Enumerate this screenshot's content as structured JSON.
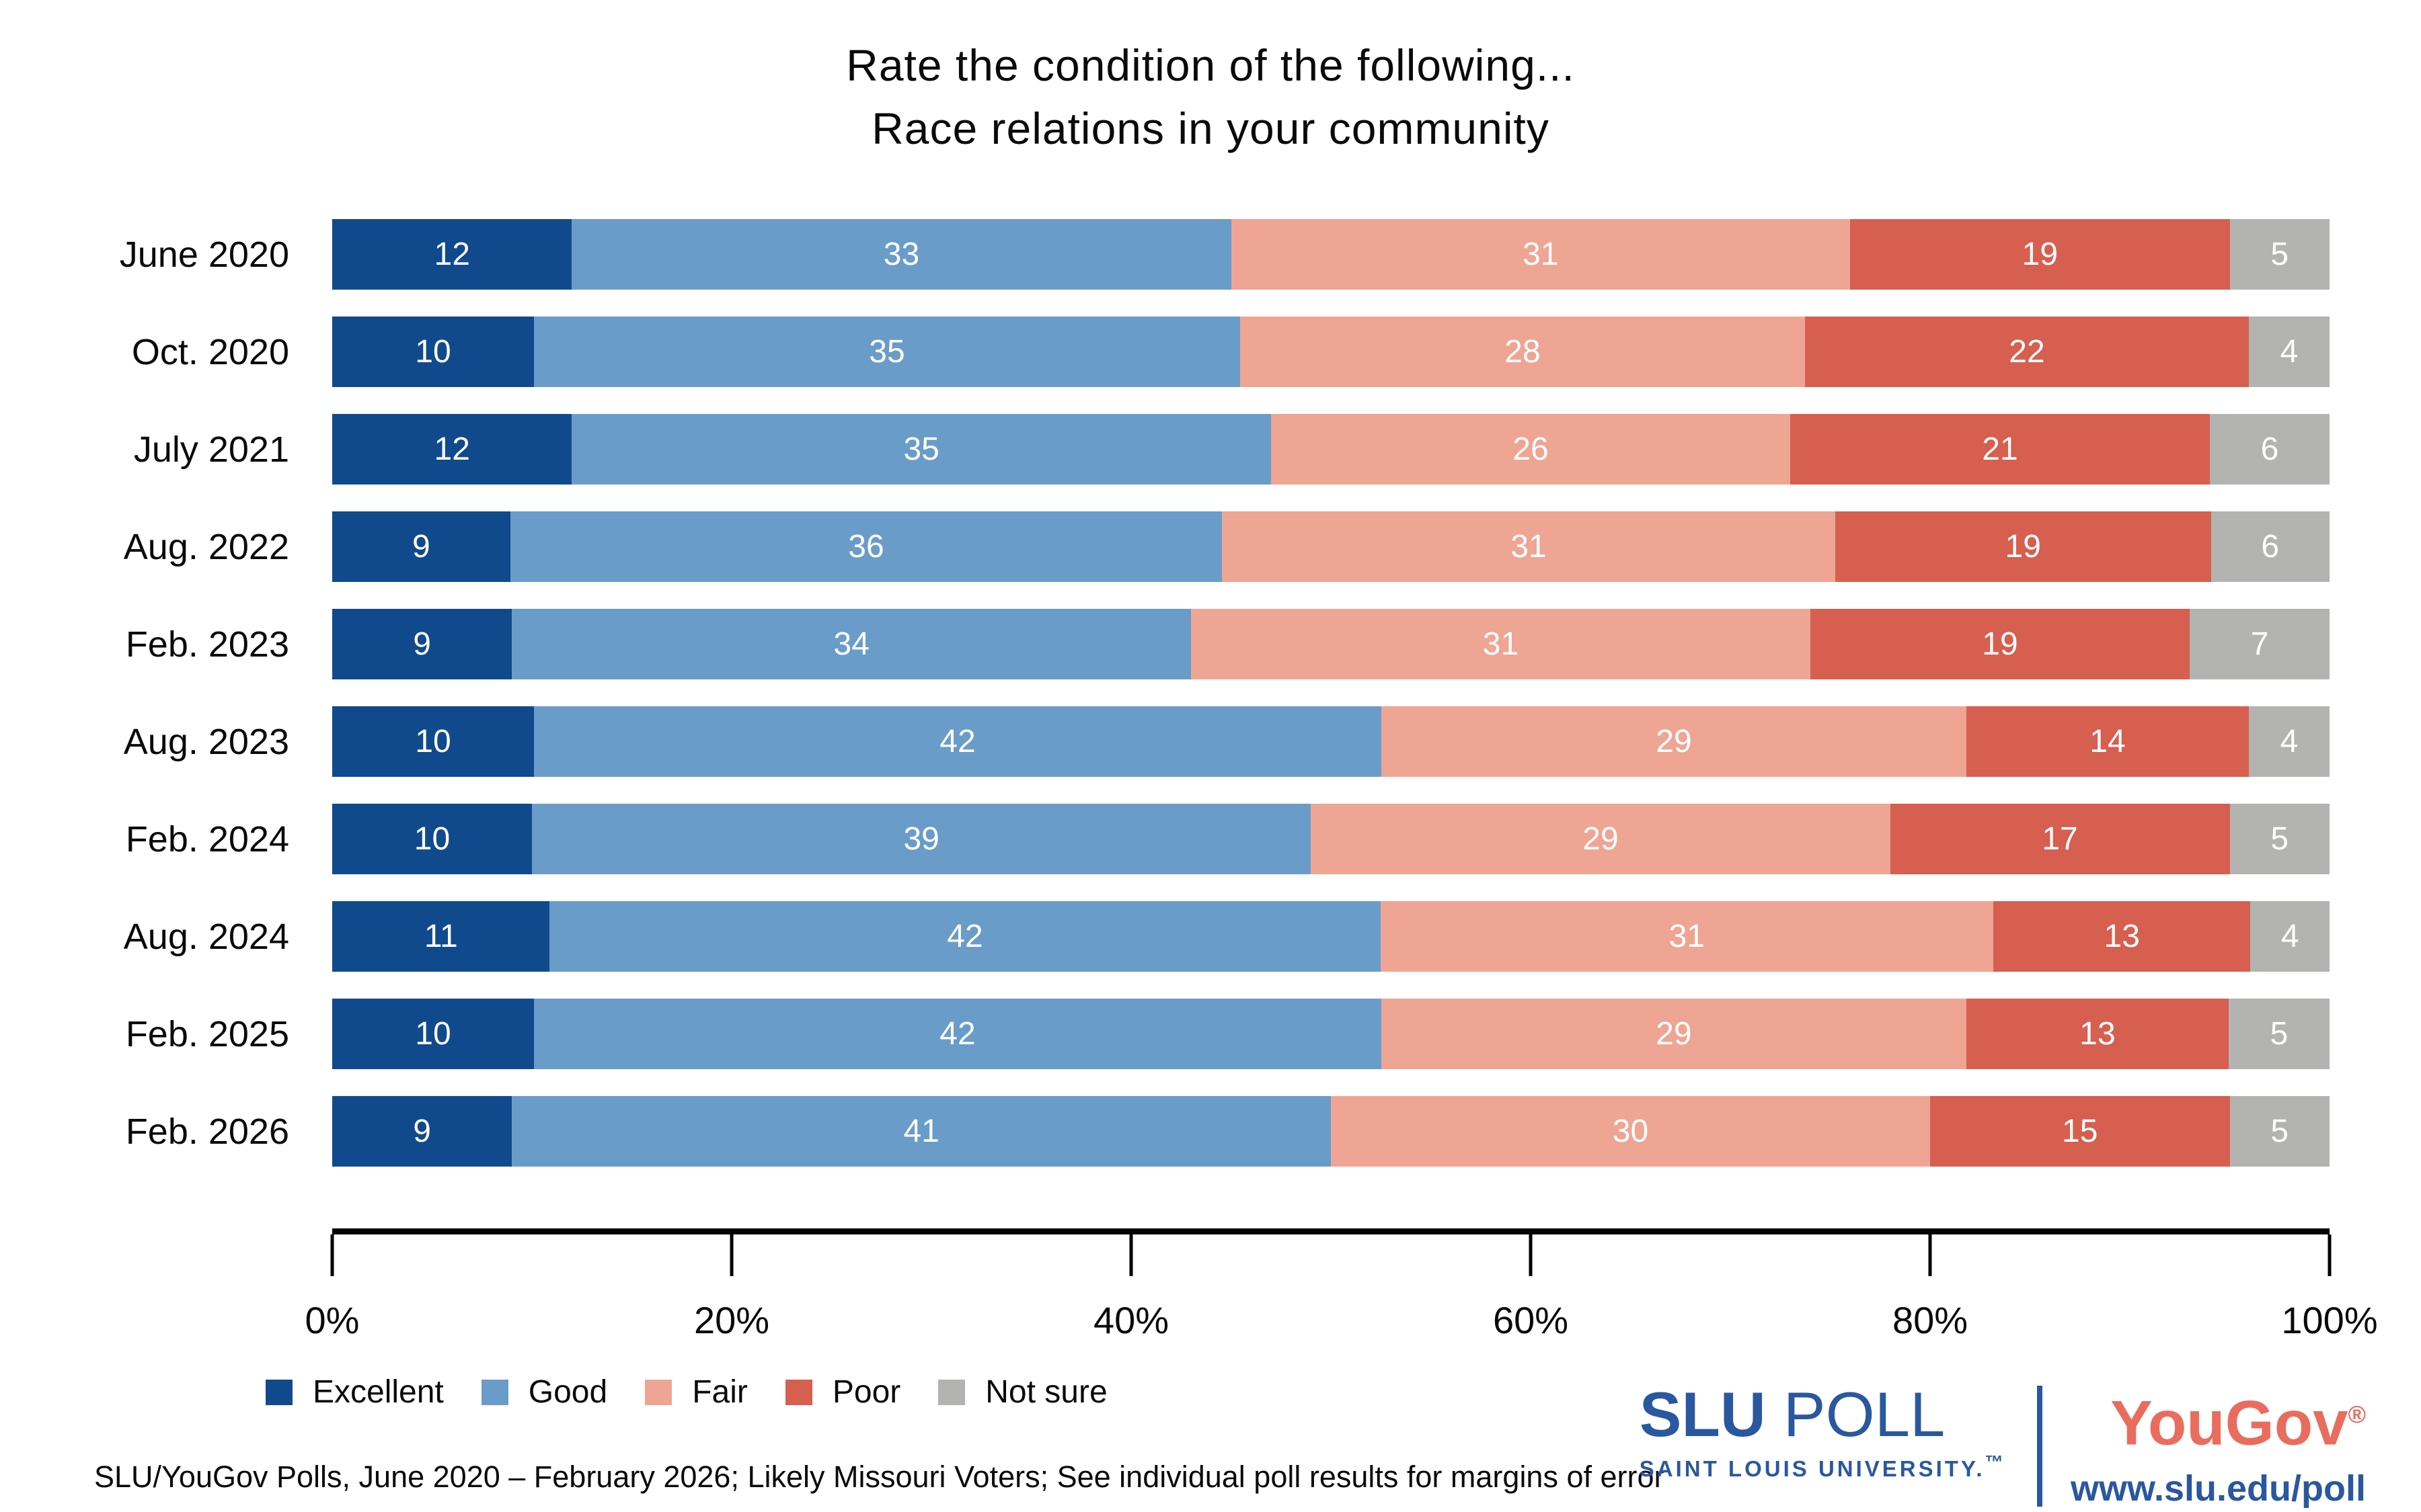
{
  "title": {
    "line1": "Rate the condition of the following...",
    "line2": "Race relations in your community"
  },
  "chart_data": {
    "type": "bar",
    "stacked": true,
    "orientation": "horizontal",
    "title": "Rate the condition of the following... Race relations in your community",
    "categories": [
      "June 2020",
      "Oct. 2020",
      "July 2021",
      "Aug. 2022",
      "Feb. 2023",
      "Aug. 2023",
      "Feb. 2024",
      "Aug. 2024",
      "Feb. 2025",
      "Feb. 2026"
    ],
    "series": [
      {
        "name": "Excellent",
        "color": "#114A8C",
        "values": [
          12,
          10,
          12,
          9,
          9,
          10,
          10,
          11,
          10,
          9
        ]
      },
      {
        "name": "Good",
        "color": "#6A9CC9",
        "values": [
          33,
          35,
          35,
          36,
          34,
          42,
          39,
          42,
          42,
          41
        ]
      },
      {
        "name": "Fair",
        "color": "#EFA593",
        "values": [
          31,
          28,
          26,
          31,
          31,
          29,
          29,
          31,
          29,
          30
        ]
      },
      {
        "name": "Poor",
        "color": "#D65F50",
        "values": [
          19,
          22,
          21,
          19,
          19,
          14,
          17,
          13,
          13,
          15
        ]
      },
      {
        "name": "Not sure",
        "color": "#B3B3B2",
        "values": [
          5,
          4,
          6,
          6,
          7,
          4,
          5,
          4,
          5,
          5
        ]
      }
    ],
    "value_labels": "inside-white",
    "xlim": [
      0,
      100
    ],
    "x_ticks": [
      "0%",
      "20%",
      "40%",
      "60%",
      "80%",
      "100%"
    ],
    "grid": false,
    "legend_position": "bottom-left"
  },
  "footer": {
    "source_note": "SLU/YouGov Polls, June 2020 – February 2026; Likely Missouri Voters; See individual poll results for margins of error"
  },
  "branding": {
    "slu_word": "SLU",
    "poll_word": "POLL",
    "slu_subtitle": "SAINT LOUIS UNIVERSITY.",
    "slu_tm": "™",
    "yougov": "YouGov",
    "yougov_reg": "®",
    "url": "www.slu.edu/poll",
    "slu_blue": "#2A58A0",
    "yougov_coral": "#E96D5E"
  }
}
